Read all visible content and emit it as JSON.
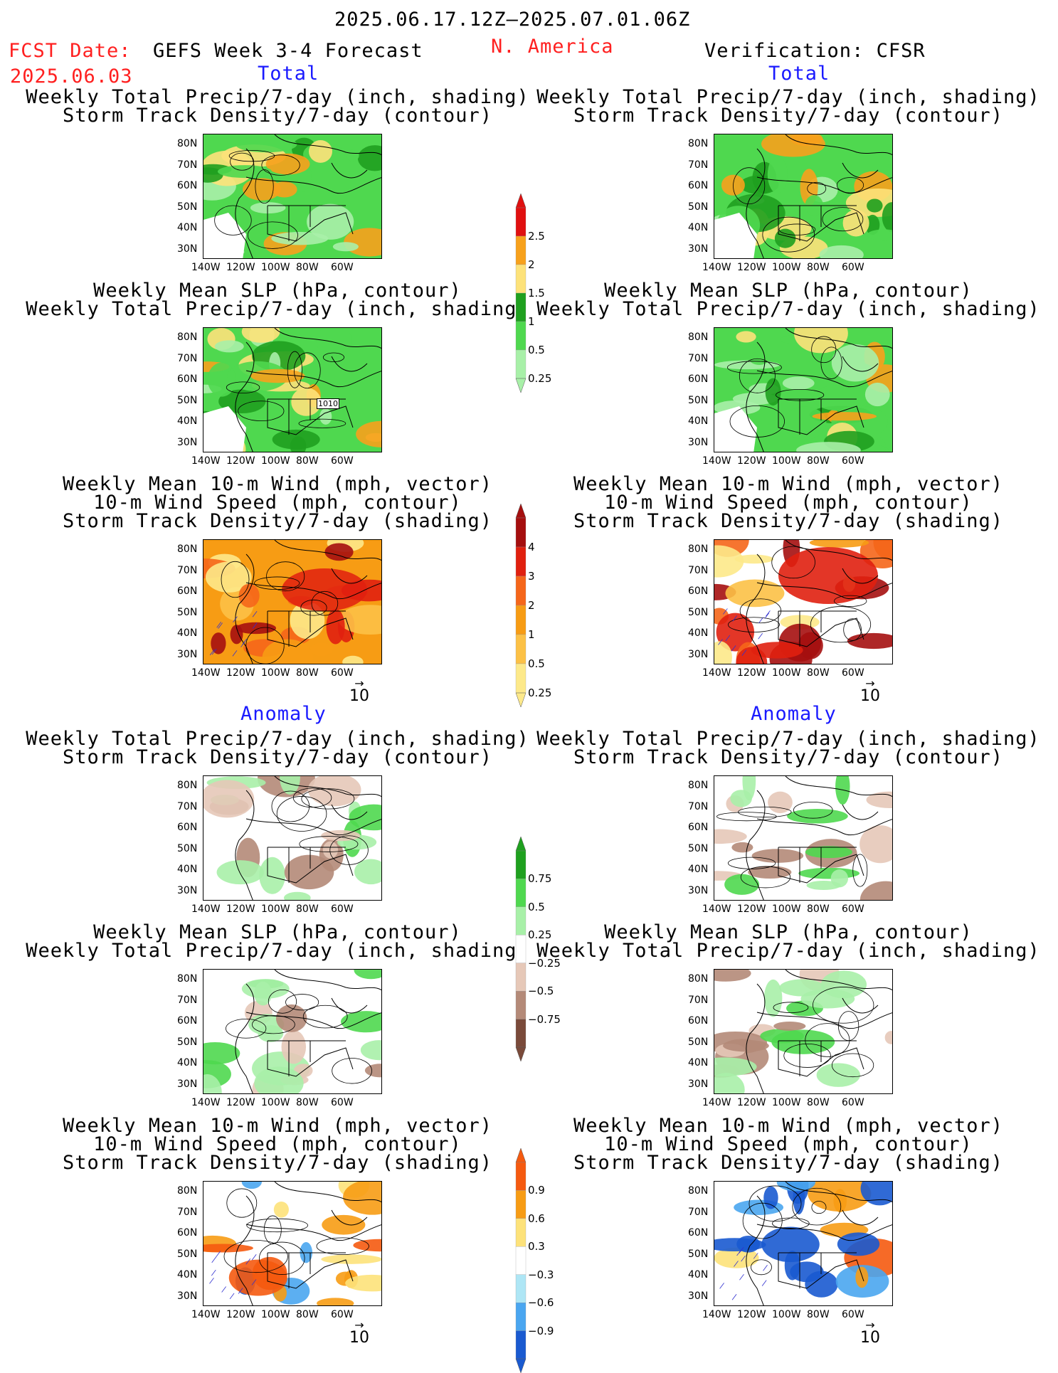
{
  "header": {
    "period": "2025.06.17.12Z–2025.07.01.06Z",
    "fcst_label": "FCST Date:",
    "fcst_date": "2025.06.03",
    "model": "GEFS Week 3-4 Forecast",
    "region": "N. America",
    "verification": "Verification: CFSR"
  },
  "sections": {
    "total": "Total",
    "anomaly": "Anomaly"
  },
  "panels": {
    "precip_storm": [
      "Weekly Total Precip/7-day (inch, shading)",
      "Storm Track Density/7-day (contour)"
    ],
    "slp_precip": [
      "Weekly Mean SLP (hPa, contour)",
      "Weekly Total Precip/7-day (inch, shading)"
    ],
    "wind_storm": [
      "Weekly Mean 10-m Wind (mph, vector)",
      "10-m Wind Speed (mph, contour)",
      "Storm Track Density/7-day (shading)"
    ]
  },
  "axes": {
    "lat_labels": [
      "80N",
      "70N",
      "60N",
      "50N",
      "40N",
      "30N"
    ],
    "lon_labels": [
      "140W",
      "120W",
      "100W",
      "80W",
      "60W"
    ]
  },
  "vector_ref": "10",
  "contour_label": "1010",
  "colorbars": {
    "precip_total": {
      "labels": [
        "2.5",
        "2",
        "1.5",
        "1",
        "0.5",
        "0.25"
      ],
      "colors": [
        "#e01010",
        "#f7a11c",
        "#fde27a",
        "#1fa01f",
        "#4fd84f",
        "#a8f0a8"
      ]
    },
    "storm_total": {
      "labels": [
        "4",
        "3",
        "2",
        "1",
        "0.5",
        "0.25"
      ],
      "colors": [
        "#a50f0f",
        "#e0200f",
        "#f5661a",
        "#f79c14",
        "#fcc146",
        "#fde98a"
      ]
    },
    "precip_anom": {
      "labels": [
        "0.75",
        "0.5",
        "0.25",
        "−0.25",
        "−0.5",
        "−0.75"
      ],
      "colors": [
        "#1fa01f",
        "#4fd84f",
        "#a8f0a8",
        "#ffffff",
        "#e6c8b8",
        "#b48a78",
        "#7a4a3a"
      ]
    },
    "storm_anom": {
      "labels": [
        "0.9",
        "0.6",
        "0.3",
        "−0.3",
        "−0.6",
        "−0.9"
      ],
      "colors": [
        "#f55a10",
        "#f79c14",
        "#fde27a",
        "#ffffff",
        "#aee6f5",
        "#4aa6f0",
        "#1a5ad0"
      ]
    }
  }
}
